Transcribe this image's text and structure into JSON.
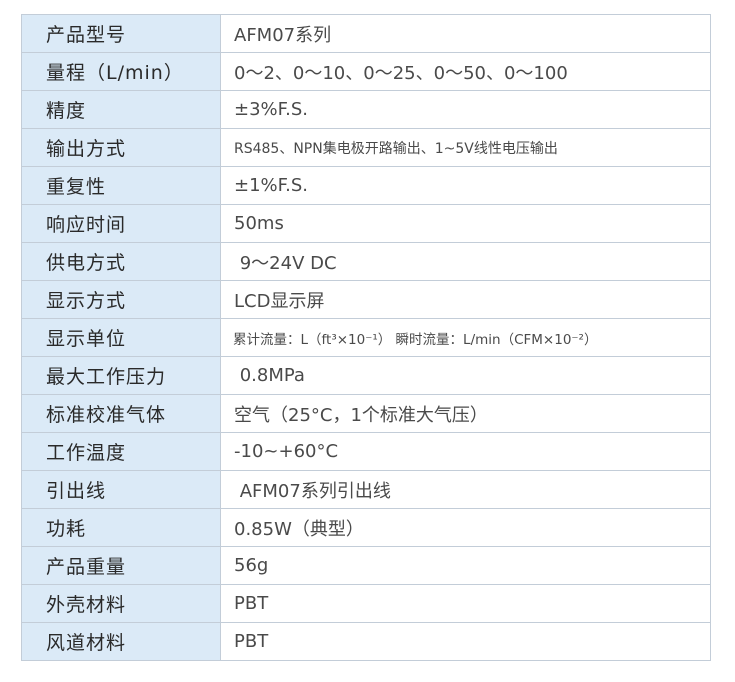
{
  "specs": [
    {
      "label": "产品型号",
      "value": "AFM07系列"
    },
    {
      "label": "量程（L/min）",
      "value": "0～2、0～10、0～25、0～50、0～100"
    },
    {
      "label": "精度",
      "value": "±3%F.S."
    },
    {
      "label": "输出方式",
      "value": "RS485、NPN集电极开路输出、1~5V线性电压输出"
    },
    {
      "label": "重复性",
      "value": "±1%F.S."
    },
    {
      "label": "响应时间",
      "value": "50ms"
    },
    {
      "label": "供电方式",
      "value": " 9～24V DC"
    },
    {
      "label": "显示方式",
      "value": "LCD显示屏"
    },
    {
      "label": "显示单位",
      "value": "累计流量：L（ft³×10⁻¹） 瞬时流量：L/min（CFM×10⁻²）"
    },
    {
      "label": "最大工作压力",
      "value": " 0.8MPa"
    },
    {
      "label": "标准校准气体",
      "value": "空气（25°C，1个标准大气压）"
    },
    {
      "label": "工作温度",
      "value": "-10~+60°C"
    },
    {
      "label": "引出线",
      "value": " AFM07系列引出线"
    },
    {
      "label": "功耗",
      "value": "0.85W（典型）"
    },
    {
      "label": "产品重量",
      "value": "56g"
    },
    {
      "label": "外壳材料",
      "value": "PBT"
    },
    {
      "label": "风道材料",
      "value": "PBT"
    }
  ],
  "colors": {
    "label_bg": "#dbeaf7",
    "border": "#c3cdd8"
  }
}
